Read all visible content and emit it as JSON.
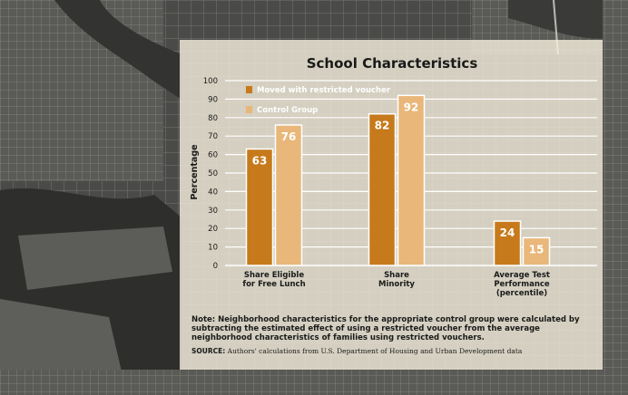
{
  "chart_data": {
    "type": "bar",
    "title": "School Characteristics",
    "ylabel": "Percentage",
    "xlabel": "",
    "ylim": [
      0,
      100
    ],
    "yticks": [
      0,
      10,
      20,
      30,
      40,
      50,
      60,
      70,
      80,
      90,
      100
    ],
    "categories": [
      [
        "Share Eligible",
        "for Free Lunch"
      ],
      [
        "Share",
        "Minority"
      ],
      [
        "Average Test",
        "Performance",
        "(percentile)"
      ]
    ],
    "series": [
      {
        "name": "Moved with restricted voucher",
        "values": [
          63,
          82,
          24
        ],
        "color": "#c67a1b"
      },
      {
        "name": "Control Group",
        "values": [
          76,
          92,
          15
        ],
        "color": "#e9b77a"
      }
    ],
    "legend_position": "top-left",
    "grid": true
  },
  "note": "Note: Neighborhood characteristics for the appropriate control group were calculated by subtracting the estimated effect of using a restricted voucher from the average neighborhood characteristics of families using restricted vouchers.",
  "source": {
    "label": "SOURCE:",
    "text": "Authors' calculations from U.S. Department of Housing and Urban Development data"
  }
}
